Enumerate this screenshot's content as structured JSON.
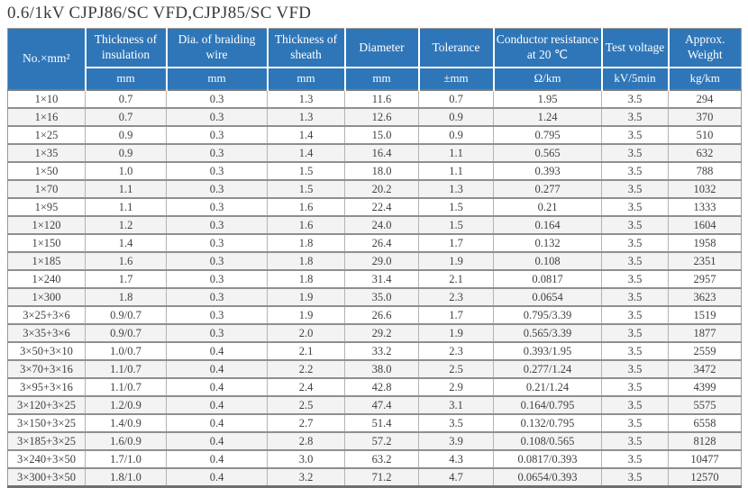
{
  "title": "0.6/1kV CJPJ86/SC VFD,CJPJ85/SC VFD",
  "colors": {
    "header_bg": "#2F76B8",
    "header_text": "#FFFFFF",
    "row_stripe": "#F3F3F3",
    "body_text": "#3F3F3F",
    "grid_line": "#8F8F8F"
  },
  "chart_data": {
    "type": "table",
    "title": "0.6/1kV CJPJ86/SC VFD,CJPJ85/SC VFD",
    "columns": [
      {
        "label": "No.×mm²",
        "unit": ""
      },
      {
        "label": "Thickness of insulation",
        "unit": "mm"
      },
      {
        "label": "Dia. of braiding wire",
        "unit": "mm"
      },
      {
        "label": "Thickness of sheath",
        "unit": "mm"
      },
      {
        "label": "Diameter",
        "unit": "mm"
      },
      {
        "label": "Tolerance",
        "unit": "±mm"
      },
      {
        "label": "Conductor resistance at 20 ℃",
        "unit": "Ω/km"
      },
      {
        "label": "Test voltage",
        "unit": "kV/5min"
      },
      {
        "label": "Approx. Weight",
        "unit": "kg/km"
      }
    ],
    "rows": [
      [
        "1×10",
        "0.7",
        "0.3",
        "1.3",
        "11.6",
        "0.7",
        "1.95",
        "3.5",
        "294"
      ],
      [
        "1×16",
        "0.7",
        "0.3",
        "1.3",
        "12.6",
        "0.9",
        "1.24",
        "3.5",
        "370"
      ],
      [
        "1×25",
        "0.9",
        "0.3",
        "1.4",
        "15.0",
        "0.9",
        "0.795",
        "3.5",
        "510"
      ],
      [
        "1×35",
        "0.9",
        "0.3",
        "1.4",
        "16.4",
        "1.1",
        "0.565",
        "3.5",
        "632"
      ],
      [
        "1×50",
        "1.0",
        "0.3",
        "1.5",
        "18.0",
        "1.1",
        "0.393",
        "3.5",
        "788"
      ],
      [
        "1×70",
        "1.1",
        "0.3",
        "1.5",
        "20.2",
        "1.3",
        "0.277",
        "3.5",
        "1032"
      ],
      [
        "1×95",
        "1.1",
        "0.3",
        "1.6",
        "22.4",
        "1.5",
        "0.21",
        "3.5",
        "1333"
      ],
      [
        "1×120",
        "1.2",
        "0.3",
        "1.6",
        "24.0",
        "1.5",
        "0.164",
        "3.5",
        "1604"
      ],
      [
        "1×150",
        "1.4",
        "0.3",
        "1.8",
        "26.4",
        "1.7",
        "0.132",
        "3.5",
        "1958"
      ],
      [
        "1×185",
        "1.6",
        "0.3",
        "1.8",
        "29.0",
        "1.9",
        "0.108",
        "3.5",
        "2351"
      ],
      [
        "1×240",
        "1.7",
        "0.3",
        "1.8",
        "31.4",
        "2.1",
        "0.0817",
        "3.5",
        "2957"
      ],
      [
        "1×300",
        "1.8",
        "0.3",
        "1.9",
        "35.0",
        "2.3",
        "0.0654",
        "3.5",
        "3623"
      ],
      [
        "3×25+3×6",
        "0.9/0.7",
        "0.3",
        "1.9",
        "26.6",
        "1.7",
        "0.795/3.39",
        "3.5",
        "1519"
      ],
      [
        "3×35+3×6",
        "0.9/0.7",
        "0.3",
        "2.0",
        "29.2",
        "1.9",
        "0.565/3.39",
        "3.5",
        "1877"
      ],
      [
        "3×50+3×10",
        "1.0/0.7",
        "0.4",
        "2.1",
        "33.2",
        "2.3",
        "0.393/1.95",
        "3.5",
        "2559"
      ],
      [
        "3×70+3×16",
        "1.1/0.7",
        "0.4",
        "2.2",
        "38.0",
        "2.5",
        "0.277/1.24",
        "3.5",
        "3472"
      ],
      [
        "3×95+3×16",
        "1.1/0.7",
        "0.4",
        "2.4",
        "42.8",
        "2.9",
        "0.21/1.24",
        "3.5",
        "4399"
      ],
      [
        "3×120+3×25",
        "1.2/0.9",
        "0.4",
        "2.5",
        "47.4",
        "3.1",
        "0.164/0.795",
        "3.5",
        "5575"
      ],
      [
        "3×150+3×25",
        "1.4/0.9",
        "0.4",
        "2.7",
        "51.4",
        "3.5",
        "0.132/0.795",
        "3.5",
        "6558"
      ],
      [
        "3×185+3×25",
        "1.6/0.9",
        "0.4",
        "2.8",
        "57.2",
        "3.9",
        "0.108/0.565",
        "3.5",
        "8128"
      ],
      [
        "3×240+3×50",
        "1.7/1.0",
        "0.4",
        "3.0",
        "63.2",
        "4.3",
        "0.0817/0.393",
        "3.5",
        "10477"
      ],
      [
        "3×300+3×50",
        "1.8/1.0",
        "0.4",
        "3.2",
        "71.2",
        "4.7",
        "0.0654/0.393",
        "3.5",
        "12570"
      ]
    ]
  }
}
